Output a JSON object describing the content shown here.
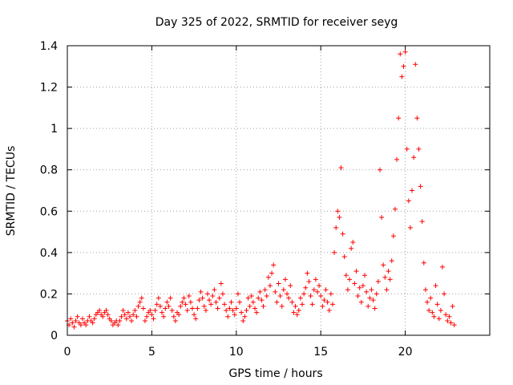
{
  "chart_data": {
    "type": "scatter",
    "title": "Day 325 of 2022, SRMTID for receiver seyg",
    "xlabel": "GPS time / hours",
    "ylabel": "SRMTID / TECUs",
    "xlim": [
      0,
      25
    ],
    "ylim": [
      0,
      1.4
    ],
    "xticks": [
      0,
      5,
      10,
      15,
      20
    ],
    "xtick_labels": [
      "0",
      "5",
      "10",
      "15",
      "20"
    ],
    "yticks": [
      0,
      0.2,
      0.4,
      0.6,
      0.8,
      1,
      1.2,
      1.4
    ],
    "ytick_labels": [
      "0",
      "0.2",
      "0.4",
      "0.6",
      "0.8",
      "1",
      "1.2",
      "1.4"
    ],
    "grid": true,
    "marker": "+",
    "color": "#ff0000",
    "series": [
      {
        "name": "SRMTID",
        "points": [
          [
            0.0,
            0.07
          ],
          [
            0.1,
            0.05
          ],
          [
            0.2,
            0.08
          ],
          [
            0.3,
            0.06
          ],
          [
            0.4,
            0.04
          ],
          [
            0.5,
            0.07
          ],
          [
            0.6,
            0.09
          ],
          [
            0.7,
            0.06
          ],
          [
            0.8,
            0.05
          ],
          [
            0.9,
            0.08
          ],
          [
            1.0,
            0.06
          ],
          [
            1.1,
            0.05
          ],
          [
            1.2,
            0.07
          ],
          [
            1.3,
            0.09
          ],
          [
            1.4,
            0.07
          ],
          [
            1.5,
            0.06
          ],
          [
            1.6,
            0.08
          ],
          [
            1.7,
            0.1
          ],
          [
            1.8,
            0.11
          ],
          [
            1.9,
            0.12
          ],
          [
            2.0,
            0.1
          ],
          [
            2.1,
            0.09
          ],
          [
            2.2,
            0.11
          ],
          [
            2.3,
            0.12
          ],
          [
            2.4,
            0.1
          ],
          [
            2.5,
            0.08
          ],
          [
            2.6,
            0.07
          ],
          [
            2.7,
            0.05
          ],
          [
            2.8,
            0.06
          ],
          [
            2.9,
            0.07
          ],
          [
            3.0,
            0.05
          ],
          [
            3.1,
            0.07
          ],
          [
            3.2,
            0.09
          ],
          [
            3.3,
            0.12
          ],
          [
            3.4,
            0.1
          ],
          [
            3.5,
            0.08
          ],
          [
            3.6,
            0.11
          ],
          [
            3.7,
            0.09
          ],
          [
            3.8,
            0.07
          ],
          [
            3.9,
            0.1
          ],
          [
            4.0,
            0.12
          ],
          [
            4.1,
            0.09
          ],
          [
            4.2,
            0.14
          ],
          [
            4.3,
            0.16
          ],
          [
            4.4,
            0.18
          ],
          [
            4.5,
            0.13
          ],
          [
            4.6,
            0.07
          ],
          [
            4.7,
            0.09
          ],
          [
            4.8,
            0.11
          ],
          [
            4.9,
            0.12
          ],
          [
            5.0,
            0.1
          ],
          [
            5.1,
            0.08
          ],
          [
            5.2,
            0.12
          ],
          [
            5.3,
            0.15
          ],
          [
            5.4,
            0.18
          ],
          [
            5.5,
            0.14
          ],
          [
            5.6,
            0.11
          ],
          [
            5.7,
            0.09
          ],
          [
            5.8,
            0.13
          ],
          [
            5.9,
            0.16
          ],
          [
            6.0,
            0.14
          ],
          [
            6.1,
            0.18
          ],
          [
            6.2,
            0.12
          ],
          [
            6.3,
            0.09
          ],
          [
            6.4,
            0.07
          ],
          [
            6.5,
            0.11
          ],
          [
            6.6,
            0.1
          ],
          [
            6.7,
            0.14
          ],
          [
            6.8,
            0.16
          ],
          [
            6.9,
            0.18
          ],
          [
            7.0,
            0.15
          ],
          [
            7.1,
            0.12
          ],
          [
            7.2,
            0.19
          ],
          [
            7.3,
            0.16
          ],
          [
            7.4,
            0.13
          ],
          [
            7.5,
            0.1
          ],
          [
            7.6,
            0.08
          ],
          [
            7.7,
            0.13
          ],
          [
            7.8,
            0.17
          ],
          [
            7.9,
            0.21
          ],
          [
            8.0,
            0.18
          ],
          [
            8.1,
            0.14
          ],
          [
            8.2,
            0.12
          ],
          [
            8.3,
            0.2
          ],
          [
            8.4,
            0.17
          ],
          [
            8.5,
            0.15
          ],
          [
            8.6,
            0.19
          ],
          [
            8.7,
            0.22
          ],
          [
            8.8,
            0.16
          ],
          [
            8.9,
            0.13
          ],
          [
            9.0,
            0.18
          ],
          [
            9.1,
            0.25
          ],
          [
            9.2,
            0.2
          ],
          [
            9.3,
            0.15
          ],
          [
            9.4,
            0.12
          ],
          [
            9.5,
            0.09
          ],
          [
            9.6,
            0.13
          ],
          [
            9.7,
            0.16
          ],
          [
            9.8,
            0.12
          ],
          [
            9.9,
            0.1
          ],
          [
            10.0,
            0.13
          ],
          [
            10.1,
            0.2
          ],
          [
            10.2,
            0.16
          ],
          [
            10.3,
            0.11
          ],
          [
            10.4,
            0.07
          ],
          [
            10.5,
            0.09
          ],
          [
            10.6,
            0.12
          ],
          [
            10.7,
            0.18
          ],
          [
            10.8,
            0.14
          ],
          [
            10.9,
            0.19
          ],
          [
            11.0,
            0.16
          ],
          [
            11.1,
            0.13
          ],
          [
            11.2,
            0.11
          ],
          [
            11.3,
            0.18
          ],
          [
            11.4,
            0.21
          ],
          [
            11.5,
            0.17
          ],
          [
            11.6,
            0.14
          ],
          [
            11.7,
            0.22
          ],
          [
            11.8,
            0.19
          ],
          [
            11.9,
            0.28
          ],
          [
            12.0,
            0.24
          ],
          [
            12.1,
            0.3
          ],
          [
            12.2,
            0.34
          ],
          [
            12.3,
            0.21
          ],
          [
            12.4,
            0.16
          ],
          [
            12.5,
            0.25
          ],
          [
            12.6,
            0.19
          ],
          [
            12.7,
            0.14
          ],
          [
            12.8,
            0.22
          ],
          [
            12.9,
            0.27
          ],
          [
            13.0,
            0.2
          ],
          [
            13.1,
            0.18
          ],
          [
            13.2,
            0.24
          ],
          [
            13.3,
            0.16
          ],
          [
            13.4,
            0.11
          ],
          [
            13.5,
            0.14
          ],
          [
            13.6,
            0.1
          ],
          [
            13.7,
            0.12
          ],
          [
            13.8,
            0.18
          ],
          [
            13.9,
            0.15
          ],
          [
            14.0,
            0.2
          ],
          [
            14.1,
            0.23
          ],
          [
            14.2,
            0.3
          ],
          [
            14.3,
            0.26
          ],
          [
            14.4,
            0.19
          ],
          [
            14.5,
            0.15
          ],
          [
            14.6,
            0.22
          ],
          [
            14.7,
            0.27
          ],
          [
            14.8,
            0.21
          ],
          [
            14.9,
            0.24
          ],
          [
            15.0,
            0.19
          ],
          [
            15.1,
            0.14
          ],
          [
            15.2,
            0.17
          ],
          [
            15.3,
            0.22
          ],
          [
            15.4,
            0.16
          ],
          [
            15.5,
            0.12
          ],
          [
            15.6,
            0.2
          ],
          [
            15.7,
            0.15
          ],
          [
            15.8,
            0.4
          ],
          [
            15.9,
            0.52
          ],
          [
            16.0,
            0.6
          ],
          [
            16.1,
            0.57
          ],
          [
            16.2,
            0.81
          ],
          [
            16.3,
            0.49
          ],
          [
            16.4,
            0.38
          ],
          [
            16.5,
            0.29
          ],
          [
            16.6,
            0.22
          ],
          [
            16.7,
            0.27
          ],
          [
            16.8,
            0.42
          ],
          [
            16.9,
            0.45
          ],
          [
            17.0,
            0.25
          ],
          [
            17.1,
            0.31
          ],
          [
            17.2,
            0.19
          ],
          [
            17.3,
            0.23
          ],
          [
            17.4,
            0.16
          ],
          [
            17.5,
            0.24
          ],
          [
            17.6,
            0.29
          ],
          [
            17.7,
            0.21
          ],
          [
            17.8,
            0.14
          ],
          [
            17.9,
            0.18
          ],
          [
            18.0,
            0.22
          ],
          [
            18.1,
            0.17
          ],
          [
            18.2,
            0.13
          ],
          [
            18.3,
            0.2
          ],
          [
            18.4,
            0.26
          ],
          [
            18.5,
            0.8
          ],
          [
            18.6,
            0.57
          ],
          [
            18.7,
            0.34
          ],
          [
            18.8,
            0.28
          ],
          [
            18.9,
            0.22
          ],
          [
            19.0,
            0.31
          ],
          [
            19.1,
            0.27
          ],
          [
            19.2,
            0.36
          ],
          [
            19.3,
            0.48
          ],
          [
            19.4,
            0.61
          ],
          [
            19.5,
            0.85
          ],
          [
            19.6,
            1.05
          ],
          [
            19.7,
            1.36
          ],
          [
            19.8,
            1.25
          ],
          [
            19.9,
            1.3
          ],
          [
            20.0,
            1.37
          ],
          [
            20.1,
            0.9
          ],
          [
            20.2,
            0.65
          ],
          [
            20.3,
            0.52
          ],
          [
            20.4,
            0.7
          ],
          [
            20.5,
            0.86
          ],
          [
            20.6,
            1.31
          ],
          [
            20.7,
            1.05
          ],
          [
            20.8,
            0.9
          ],
          [
            20.9,
            0.72
          ],
          [
            21.0,
            0.55
          ],
          [
            21.1,
            0.35
          ],
          [
            21.2,
            0.22
          ],
          [
            21.3,
            0.16
          ],
          [
            21.4,
            0.12
          ],
          [
            21.5,
            0.18
          ],
          [
            21.6,
            0.11
          ],
          [
            21.7,
            0.09
          ],
          [
            21.8,
            0.24
          ],
          [
            21.9,
            0.15
          ],
          [
            22.0,
            0.08
          ],
          [
            22.1,
            0.12
          ],
          [
            22.2,
            0.33
          ],
          [
            22.3,
            0.2
          ],
          [
            22.4,
            0.1
          ],
          [
            22.5,
            0.07
          ],
          [
            22.6,
            0.09
          ],
          [
            22.7,
            0.06
          ],
          [
            22.8,
            0.14
          ],
          [
            22.9,
            0.05
          ]
        ]
      }
    ]
  }
}
